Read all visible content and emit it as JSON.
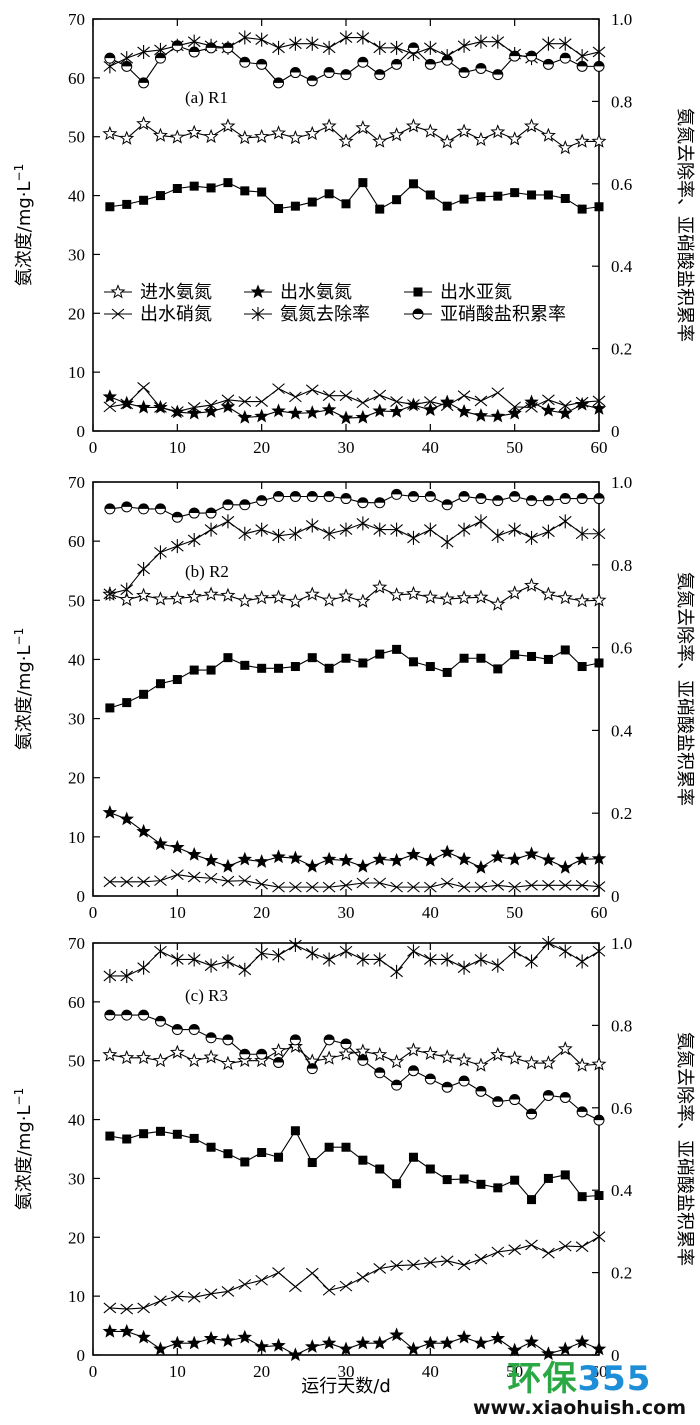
{
  "chart_data": {
    "type": "line",
    "xlabel": "运行天数/d",
    "ylabel_left": "氨浓度/mg·L",
    "ylabel_left_sup": "−1",
    "ylabel_right": "氨氮去除率、亚硝酸盐积累率",
    "xlim": [
      0,
      60
    ],
    "ylim_left": [
      0,
      70
    ],
    "ylim_right": [
      0,
      1.0
    ],
    "x_ticks": [
      "0",
      "10",
      "20",
      "30",
      "40",
      "50",
      "60"
    ],
    "y_left_ticks": [
      "0",
      "10",
      "20",
      "30",
      "40",
      "50",
      "60",
      "70"
    ],
    "y_right_ticks": [
      "0",
      "0.2",
      "0.4",
      "0.6",
      "0.8",
      "1.0"
    ],
    "legend_labels": [
      "进水氨氮",
      "出水氨氮",
      "出水亚氮",
      "出水硝氮",
      "氨氮去除率",
      "亚硝酸盐积累率"
    ],
    "x": [
      2,
      4,
      6,
      8,
      10,
      12,
      14,
      16,
      18,
      20,
      22,
      24,
      26,
      28,
      30,
      32,
      34,
      36,
      38,
      40,
      42,
      44,
      46,
      48,
      50,
      52,
      54,
      56,
      58,
      60
    ],
    "panels": [
      {
        "title": "(a) R1",
        "series": [
          {
            "name": "进水氨氮",
            "axis": "left",
            "values": [
              50.5,
              49.7,
              52.2,
              50.2,
              49.9,
              50.7,
              50.0,
              51.8,
              49.8,
              50.0,
              50.6,
              49.8,
              50.5,
              51.8,
              49.2,
              51.5,
              49.2,
              50.3,
              51.8,
              50.9,
              49.1,
              50.9,
              49.5,
              50.8,
              49.6,
              51.8,
              50.2,
              48.1,
              49.2,
              49.2
            ]
          },
          {
            "name": "出水氨氮",
            "axis": "left",
            "values": [
              5.8,
              4.7,
              4.0,
              4.0,
              3.2,
              3.0,
              3.3,
              4.1,
              2.3,
              2.5,
              3.4,
              3.0,
              3.1,
              3.6,
              2.2,
              2.3,
              3.4,
              3.3,
              4.4,
              3.6,
              4.9,
              3.3,
              2.6,
              2.5,
              3.0,
              4.9,
              3.5,
              3.0,
              4.5,
              3.8
            ]
          },
          {
            "name": "出水亚氮",
            "axis": "left",
            "values": [
              38.1,
              38.5,
              39.2,
              40.0,
              41.2,
              41.6,
              41.3,
              42.2,
              40.8,
              40.6,
              37.8,
              38.2,
              38.9,
              40.3,
              38.6,
              42.2,
              37.7,
              39.3,
              42.0,
              40.1,
              38.2,
              39.4,
              39.8,
              39.9,
              40.5,
              40.1,
              40.1,
              39.5,
              37.7,
              38.1
            ]
          },
          {
            "name": "出水硝氮",
            "axis": "left",
            "values": [
              4.1,
              4.6,
              7.4,
              4.0,
              3.3,
              4.0,
              4.4,
              5.3,
              5.0,
              5.0,
              7.2,
              5.8,
              7.0,
              6.0,
              6.0,
              4.8,
              6.1,
              5.0,
              4.5,
              5.0,
              4.3,
              6.0,
              5.1,
              6.5,
              4.1,
              4.0,
              5.3,
              4.3,
              4.9,
              5.1
            ]
          },
          {
            "name": "氨氮去除率",
            "axis": "right",
            "values": [
              0.885,
              0.905,
              0.92,
              0.925,
              0.935,
              0.945,
              0.935,
              0.93,
              0.955,
              0.95,
              0.93,
              0.94,
              0.94,
              0.93,
              0.955,
              0.955,
              0.93,
              0.93,
              0.915,
              0.93,
              0.91,
              0.935,
              0.945,
              0.945,
              0.915,
              0.905,
              0.94,
              0.94,
              0.91,
              0.92
            ]
          },
          {
            "name": "亚硝酸盐积累率",
            "axis": "right",
            "values": [
              0.905,
              0.885,
              0.845,
              0.905,
              0.935,
              0.92,
              0.93,
              0.93,
              0.895,
              0.89,
              0.845,
              0.87,
              0.85,
              0.87,
              0.865,
              0.895,
              0.865,
              0.89,
              0.93,
              0.89,
              0.9,
              0.87,
              0.88,
              0.865,
              0.91,
              0.91,
              0.89,
              0.905,
              0.885,
              0.885
            ]
          }
        ]
      },
      {
        "title": "(b) R2",
        "series": [
          {
            "name": "进水氨氮",
            "axis": "left",
            "values": [
              51.0,
              50.1,
              50.8,
              50.2,
              50.3,
              50.6,
              51.0,
              50.8,
              49.9,
              50.4,
              50.5,
              49.8,
              51.0,
              50.0,
              50.7,
              49.8,
              52.2,
              50.9,
              51.1,
              50.5,
              50.2,
              50.4,
              50.5,
              49.3,
              51.2,
              52.5,
              51.0,
              50.4,
              49.9,
              50.0
            ]
          },
          {
            "name": "出水氨氮",
            "axis": "left",
            "values": [
              14.1,
              13.0,
              10.9,
              8.8,
              8.2,
              7.0,
              6.0,
              5.0,
              6.2,
              5.8,
              6.6,
              6.4,
              5.0,
              6.2,
              6.0,
              5.0,
              6.2,
              6.0,
              7.0,
              6.0,
              7.4,
              6.2,
              4.8,
              6.6,
              6.2,
              7.1,
              6.1,
              4.8,
              6.2,
              6.3
            ]
          },
          {
            "name": "出水亚氮",
            "axis": "left",
            "values": [
              31.8,
              32.7,
              34.1,
              35.9,
              36.6,
              38.2,
              38.2,
              40.3,
              39.0,
              38.5,
              38.5,
              38.8,
              40.3,
              38.5,
              40.2,
              39.4,
              40.9,
              41.7,
              39.6,
              38.8,
              37.8,
              40.2,
              40.2,
              38.4,
              40.8,
              40.5,
              40.0,
              41.6,
              38.8,
              39.4
            ]
          },
          {
            "name": "出水硝氮",
            "axis": "left",
            "values": [
              2.4,
              2.4,
              2.4,
              2.6,
              3.6,
              3.2,
              3.0,
              2.5,
              2.6,
              2.0,
              1.5,
              1.5,
              1.5,
              1.5,
              1.8,
              2.2,
              2.2,
              1.5,
              1.5,
              1.5,
              2.2,
              1.5,
              1.5,
              1.8,
              1.5,
              1.8,
              1.8,
              1.8,
              1.8,
              1.6
            ]
          },
          {
            "name": "氨氮去除率",
            "axis": "right",
            "values": [
              0.73,
              0.74,
              0.79,
              0.83,
              0.845,
              0.86,
              0.885,
              0.905,
              0.875,
              0.885,
              0.87,
              0.875,
              0.895,
              0.875,
              0.885,
              0.9,
              0.885,
              0.885,
              0.865,
              0.885,
              0.855,
              0.885,
              0.905,
              0.87,
              0.885,
              0.865,
              0.88,
              0.905,
              0.875,
              0.875
            ]
          },
          {
            "name": "亚硝酸盐积累率",
            "axis": "right",
            "values": [
              0.935,
              0.94,
              0.935,
              0.935,
              0.915,
              0.925,
              0.925,
              0.945,
              0.945,
              0.955,
              0.965,
              0.965,
              0.965,
              0.965,
              0.96,
              0.95,
              0.95,
              0.97,
              0.965,
              0.965,
              0.945,
              0.965,
              0.96,
              0.955,
              0.965,
              0.955,
              0.955,
              0.96,
              0.96,
              0.96
            ]
          }
        ]
      },
      {
        "title": "(c) R3",
        "series": [
          {
            "name": "进水氨氮",
            "axis": "left",
            "values": [
              51.0,
              50.5,
              50.5,
              50.0,
              51.4,
              50.0,
              50.6,
              49.5,
              50.0,
              50.0,
              51.7,
              52.4,
              49.9,
              50.4,
              51.1,
              51.6,
              51.0,
              49.8,
              51.8,
              51.2,
              50.6,
              50.1,
              49.2,
              51.0,
              50.4,
              49.6,
              49.6,
              52.0,
              49.2,
              49.4
            ]
          },
          {
            "name": "出水氨氮",
            "axis": "left",
            "values": [
              4.0,
              4.0,
              3.0,
              1.0,
              2.0,
              2.0,
              2.8,
              2.4,
              3.0,
              1.4,
              1.6,
              0.0,
              1.4,
              2.0,
              1.0,
              2.0,
              2.0,
              3.4,
              1.0,
              2.0,
              2.0,
              3.0,
              2.0,
              2.8,
              0.8,
              2.2,
              0.2,
              1.0,
              2.2,
              1.0
            ]
          },
          {
            "name": "出水亚氮",
            "axis": "left",
            "values": [
              37.2,
              36.7,
              37.6,
              38.0,
              37.5,
              36.8,
              35.3,
              34.2,
              32.8,
              34.4,
              33.6,
              38.1,
              32.7,
              35.3,
              35.3,
              33.1,
              31.6,
              29.1,
              33.6,
              31.6,
              29.8,
              29.9,
              29.0,
              28.4,
              29.7,
              26.4,
              30.0,
              30.6,
              26.9,
              27.1
            ]
          },
          {
            "name": "出水硝氮",
            "axis": "left",
            "values": [
              8.0,
              7.8,
              8.0,
              9.2,
              10.0,
              9.8,
              10.4,
              10.8,
              12.0,
              12.7,
              14.0,
              11.6,
              13.9,
              11.0,
              11.7,
              13.2,
              14.7,
              15.2,
              15.3,
              15.7,
              16.0,
              15.3,
              16.3,
              17.5,
              17.9,
              18.7,
              17.3,
              18.5,
              18.4,
              20.1
            ]
          },
          {
            "name": "氨氮去除率",
            "axis": "right",
            "values": [
              0.92,
              0.92,
              0.94,
              0.98,
              0.96,
              0.96,
              0.945,
              0.955,
              0.935,
              0.975,
              0.97,
              0.995,
              0.975,
              0.96,
              0.98,
              0.96,
              0.96,
              0.93,
              0.98,
              0.96,
              0.96,
              0.94,
              0.96,
              0.945,
              0.98,
              0.955,
              1.0,
              0.98,
              0.955,
              0.98
            ]
          },
          {
            "name": "亚硝酸盐积累率",
            "axis": "right",
            "values": [
              0.825,
              0.825,
              0.825,
              0.81,
              0.79,
              0.79,
              0.77,
              0.765,
              0.73,
              0.73,
              0.71,
              0.765,
              0.695,
              0.765,
              0.755,
              0.715,
              0.685,
              0.655,
              0.69,
              0.67,
              0.65,
              0.665,
              0.64,
              0.615,
              0.62,
              0.585,
              0.63,
              0.625,
              0.59,
              0.57
            ]
          }
        ]
      }
    ]
  },
  "watermark": {
    "logo_left": "环保",
    "logo_right": "355",
    "url": "www.xiaohuish.com",
    "color_left": "#2aa844",
    "color_right": "#1f8ed8"
  }
}
